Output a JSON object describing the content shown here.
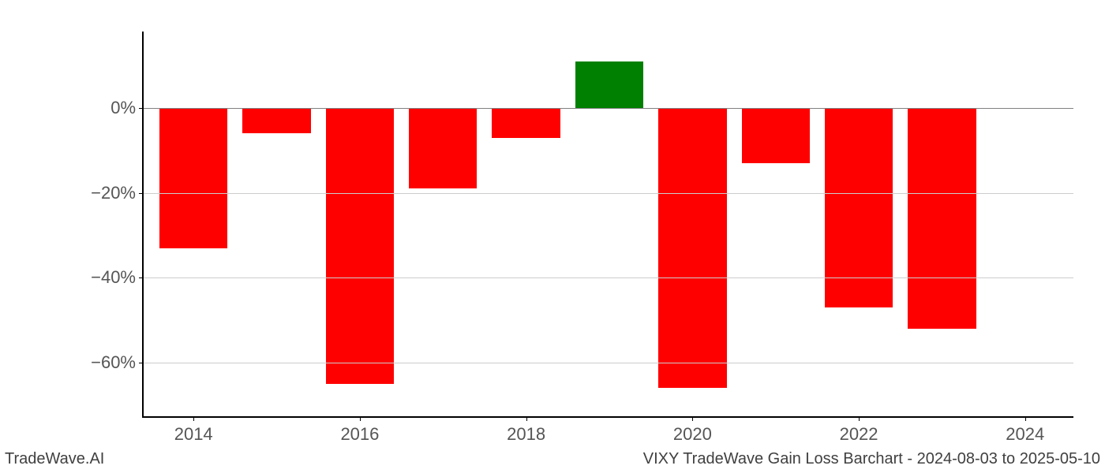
{
  "chart": {
    "type": "bar",
    "background_color": "#ffffff",
    "grid_color": "#cccccc",
    "axis_color": "#000000",
    "zero_line_color": "#808080",
    "tick_label_color": "#555555",
    "tick_fontsize": 22,
    "footer_fontsize": 20,
    "footer_color": "#404040",
    "ylim": [
      -73,
      18
    ],
    "ytick_step": 20,
    "yticks": [
      0,
      -20,
      -40,
      -60
    ],
    "ytick_labels": [
      "0%",
      "−20%",
      "−40%",
      "−60%"
    ],
    "xlim": [
      2013.4,
      2024.6
    ],
    "xticks": [
      2014,
      2016,
      2018,
      2020,
      2022,
      2024
    ],
    "xtick_labels": [
      "2014",
      "2016",
      "2018",
      "2020",
      "2022",
      "2024"
    ],
    "bar_width_years": 0.82,
    "positive_color": "#008000",
    "negative_color": "#ff0000",
    "years": [
      2014,
      2015,
      2016,
      2017,
      2018,
      2019,
      2020,
      2021,
      2022,
      2023
    ],
    "values": [
      -33,
      -6,
      -65,
      -19,
      -7,
      11,
      -66,
      -13,
      -47,
      -52
    ]
  },
  "footer": {
    "left": "TradeWave.AI",
    "right": "VIXY TradeWave Gain Loss Barchart - 2024-08-03 to 2025-05-10"
  }
}
